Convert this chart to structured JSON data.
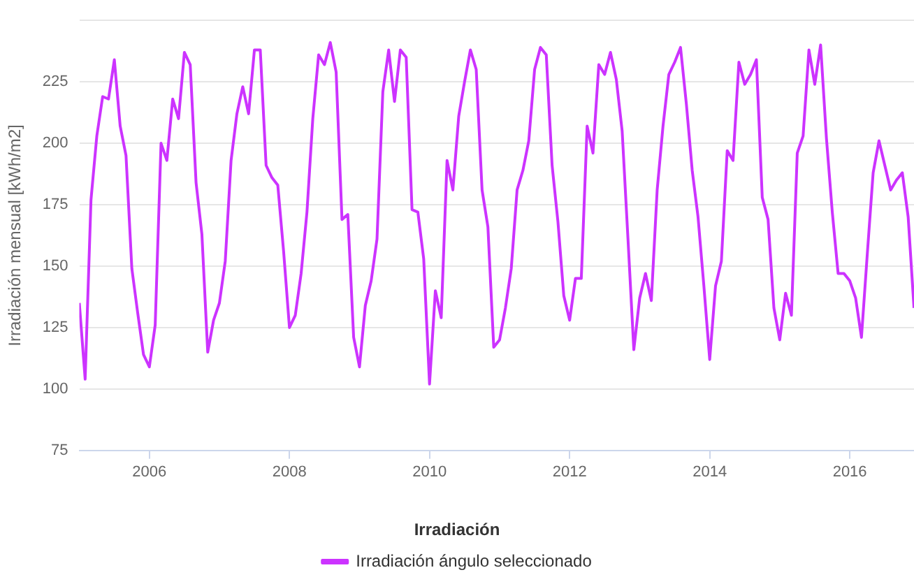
{
  "chart_data": {
    "type": "line",
    "ylabel": "Irradiación mensual [kWh/m2]",
    "legend_title": "Irradiación",
    "legend": "bottom",
    "grid": "y",
    "marker": "none",
    "line_style": "solid",
    "xlim": [
      "2005-01",
      "2016-12"
    ],
    "xticks": [
      "2006",
      "2008",
      "2010",
      "2012",
      "2014",
      "2016"
    ],
    "ylim": [
      75,
      250
    ],
    "yticks": [
      75,
      100,
      125,
      150,
      175,
      200,
      225,
      {
        "value": 250,
        "label": null
      }
    ],
    "x": [
      "2005-01",
      "2005-02",
      "2005-03",
      "2005-04",
      "2005-05",
      "2005-06",
      "2005-07",
      "2005-08",
      "2005-09",
      "2005-10",
      "2005-11",
      "2005-12",
      "2006-01",
      "2006-02",
      "2006-03",
      "2006-04",
      "2006-05",
      "2006-06",
      "2006-07",
      "2006-08",
      "2006-09",
      "2006-10",
      "2006-11",
      "2006-12",
      "2007-01",
      "2007-02",
      "2007-03",
      "2007-04",
      "2007-05",
      "2007-06",
      "2007-07",
      "2007-08",
      "2007-09",
      "2007-10",
      "2007-11",
      "2007-12",
      "2008-01",
      "2008-02",
      "2008-03",
      "2008-04",
      "2008-05",
      "2008-06",
      "2008-07",
      "2008-08",
      "2008-09",
      "2008-10",
      "2008-11",
      "2008-12",
      "2009-01",
      "2009-02",
      "2009-03",
      "2009-04",
      "2009-05",
      "2009-06",
      "2009-07",
      "2009-08",
      "2009-09",
      "2009-10",
      "2009-11",
      "2009-12",
      "2010-01",
      "2010-02",
      "2010-03",
      "2010-04",
      "2010-05",
      "2010-06",
      "2010-07",
      "2010-08",
      "2010-09",
      "2010-10",
      "2010-11",
      "2010-12",
      "2011-01",
      "2011-02",
      "2011-03",
      "2011-04",
      "2011-05",
      "2011-06",
      "2011-07",
      "2011-08",
      "2011-09",
      "2011-10",
      "2011-11",
      "2011-12",
      "2012-01",
      "2012-02",
      "2012-03",
      "2012-04",
      "2012-05",
      "2012-06",
      "2012-07",
      "2012-08",
      "2012-09",
      "2012-10",
      "2012-11",
      "2012-12",
      "2013-01",
      "2013-02",
      "2013-03",
      "2013-04",
      "2013-05",
      "2013-06",
      "2013-07",
      "2013-08",
      "2013-09",
      "2013-10",
      "2013-11",
      "2013-12",
      "2014-01",
      "2014-02",
      "2014-03",
      "2014-04",
      "2014-05",
      "2014-06",
      "2014-07",
      "2014-08",
      "2014-09",
      "2014-10",
      "2014-11",
      "2014-12",
      "2015-01",
      "2015-02",
      "2015-03",
      "2015-04",
      "2015-05",
      "2015-06",
      "2015-07",
      "2015-08",
      "2015-09",
      "2015-10",
      "2015-11",
      "2015-12",
      "2016-01",
      "2016-02",
      "2016-03",
      "2016-04",
      "2016-05",
      "2016-06",
      "2016-07",
      "2016-08",
      "2016-09",
      "2016-10",
      "2016-11",
      "2016-12"
    ],
    "series": [
      {
        "name": "Irradiación ángulo seleccionado",
        "color": "#cc33ff",
        "values": [
          135,
          104,
          177,
          203,
          219,
          218,
          234,
          207,
          195,
          149,
          131,
          114,
          109,
          126,
          200,
          193,
          218,
          210,
          237,
          232,
          184,
          163,
          115,
          128,
          135,
          152,
          193,
          212,
          223,
          212,
          238,
          238,
          191,
          186,
          183,
          156,
          125,
          130,
          147,
          172,
          210,
          236,
          232,
          241,
          229,
          169,
          171,
          121,
          109,
          134,
          144,
          161,
          221,
          238,
          217,
          238,
          235,
          173,
          172,
          153,
          102,
          140,
          129,
          193,
          181,
          211,
          225,
          238,
          230,
          181,
          166,
          117,
          120,
          133,
          149,
          181,
          189,
          201,
          230,
          239,
          236,
          191,
          168,
          138,
          128,
          145,
          145,
          207,
          196,
          232,
          228,
          237,
          226,
          205,
          161,
          116,
          137,
          147,
          136,
          181,
          207,
          228,
          233,
          239,
          216,
          189,
          170,
          142,
          112,
          142,
          152,
          197,
          193,
          233,
          224,
          228,
          234,
          178,
          169,
          133,
          120,
          139,
          130,
          196,
          203,
          238,
          224,
          240,
          202,
          172,
          147,
          147,
          144,
          137,
          121,
          155,
          188,
          201,
          191,
          181,
          185,
          188,
          170,
          133
        ]
      }
    ]
  }
}
